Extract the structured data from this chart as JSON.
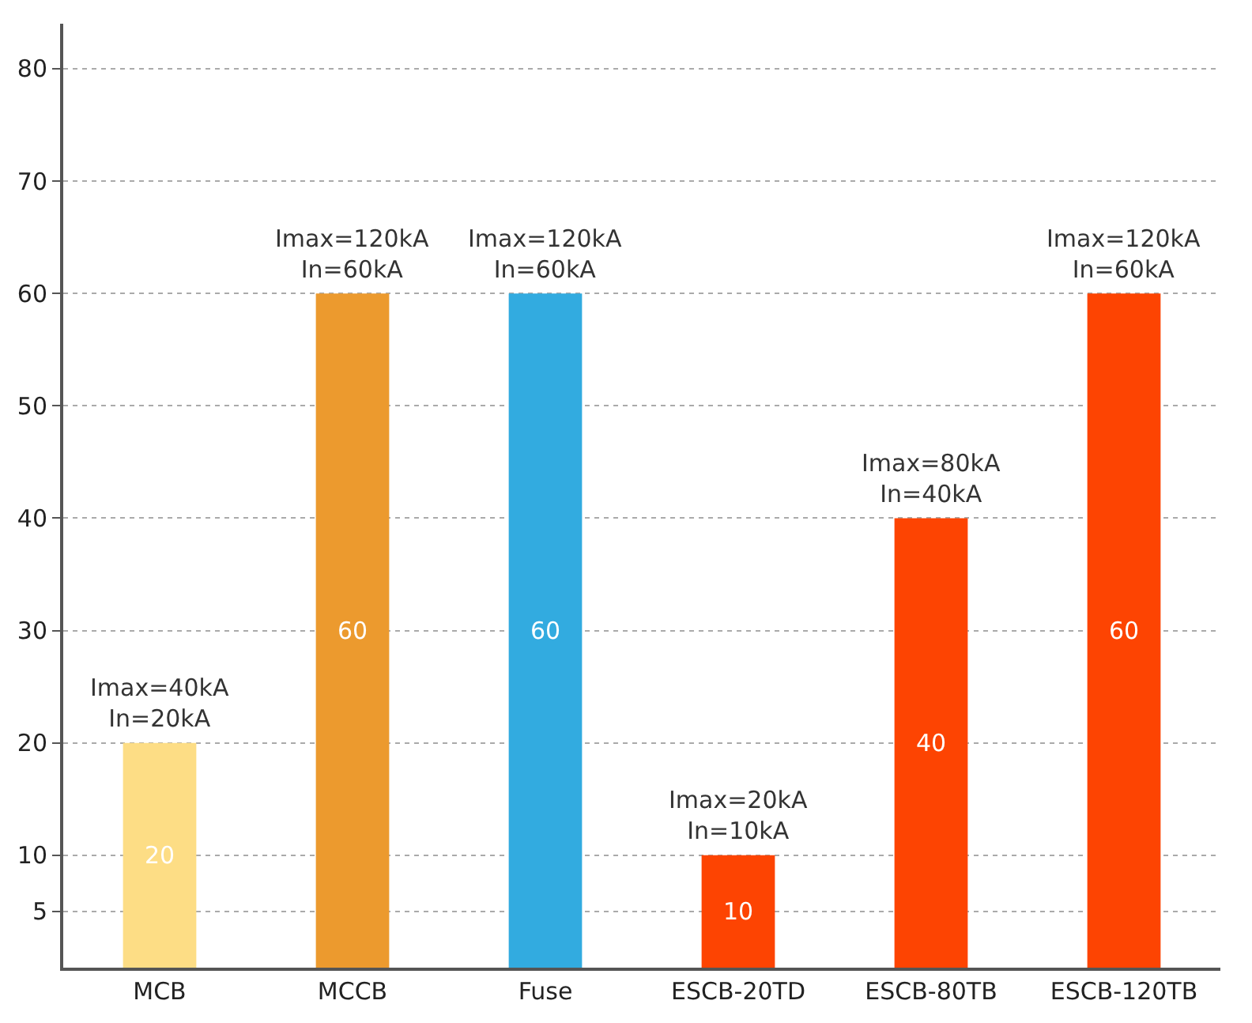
{
  "chart_data": {
    "type": "bar",
    "categories": [
      "MCB",
      "MCCB",
      "Fuse",
      "ESCB-20TD",
      "ESCB-80TB",
      "ESCB-120TB"
    ],
    "values": [
      20,
      60,
      60,
      10,
      40,
      60
    ],
    "colors": [
      "#fddd85",
      "#ec9a2e",
      "#32abe0",
      "#fd4402",
      "#fd4402",
      "#fd4402"
    ],
    "ylim": [
      0,
      84
    ],
    "yticks": [
      5,
      10,
      20,
      30,
      40,
      50,
      60,
      70,
      80
    ],
    "grid": "y",
    "data_labels": true,
    "annotations": [
      {
        "text": "Imax=40kA\nIn=20kA",
        "x": "MCB",
        "y": 20
      },
      {
        "text": "Imax=120kA\nIn=60kA",
        "x": "MCCB",
        "y": 60
      },
      {
        "text": "Imax=120kA\nIn=60kA",
        "x": "Fuse",
        "y": 60
      },
      {
        "text": "Imax=20kA\nIn=10kA",
        "x": "ESCB-20TD",
        "y": 10
      },
      {
        "text": "Imax=80kA\nIn=40kA",
        "x": "ESCB-80TB",
        "y": 40
      },
      {
        "text": "Imax=120kA\nIn=60kA",
        "x": "ESCB-120TB",
        "y": 60
      }
    ]
  }
}
